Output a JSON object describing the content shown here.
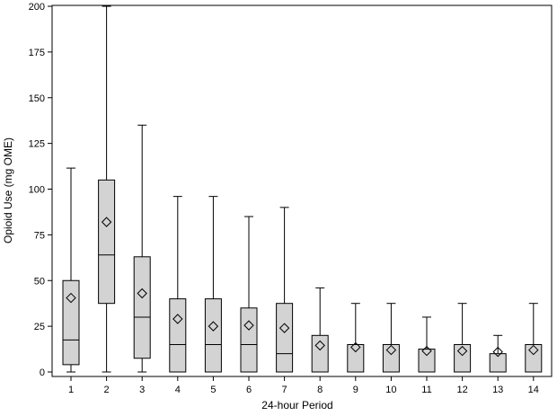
{
  "chart_data": {
    "type": "box",
    "title": "",
    "xlabel": "24-hour Period",
    "ylabel": "Opioid Use (mg OME)",
    "ylim": [
      0,
      200
    ],
    "yticks": [
      0,
      25,
      50,
      75,
      100,
      125,
      150,
      175,
      200
    ],
    "categories": [
      "1",
      "2",
      "3",
      "4",
      "5",
      "6",
      "7",
      "8",
      "9",
      "10",
      "11",
      "12",
      "13",
      "14"
    ],
    "boxes": [
      {
        "category": "1",
        "min": 0,
        "q1": 4,
        "median": 17.5,
        "q3": 50,
        "max": 111.5,
        "mean": 40.5
      },
      {
        "category": "2",
        "min": 0,
        "q1": 37.5,
        "median": 64,
        "q3": 105,
        "max": 200,
        "mean": 82
      },
      {
        "category": "3",
        "min": 0,
        "q1": 7.5,
        "median": 30,
        "q3": 63,
        "max": 135,
        "mean": 43
      },
      {
        "category": "4",
        "min": 0,
        "q1": 0,
        "median": 15,
        "q3": 40,
        "max": 96,
        "mean": 29
      },
      {
        "category": "5",
        "min": 0,
        "q1": 0,
        "median": 15,
        "q3": 40,
        "max": 96,
        "mean": 25
      },
      {
        "category": "6",
        "min": 0,
        "q1": 0,
        "median": 15,
        "q3": 35,
        "max": 85,
        "mean": 25.5
      },
      {
        "category": "7",
        "min": 0,
        "q1": 0,
        "median": 10,
        "q3": 37.5,
        "max": 90,
        "mean": 24
      },
      {
        "category": "8",
        "min": 0,
        "q1": 0,
        "median": 0,
        "q3": 20,
        "max": 46,
        "mean": 14.5
      },
      {
        "category": "9",
        "min": 0,
        "q1": 0,
        "median": 0,
        "q3": 15,
        "max": 37.5,
        "mean": 13.5
      },
      {
        "category": "10",
        "min": 0,
        "q1": 0,
        "median": 0,
        "q3": 15,
        "max": 37.5,
        "mean": 12
      },
      {
        "category": "11",
        "min": 0,
        "q1": 0,
        "median": 0,
        "q3": 12.5,
        "max": 30,
        "mean": 11.5
      },
      {
        "category": "12",
        "min": 0,
        "q1": 0,
        "median": 0,
        "q3": 15,
        "max": 37.5,
        "mean": 11.5
      },
      {
        "category": "13",
        "min": 0,
        "q1": 0,
        "median": 0,
        "q3": 10,
        "max": 20,
        "mean": 11
      },
      {
        "category": "14",
        "min": 0,
        "q1": 0,
        "median": 0,
        "q3": 15,
        "max": 37.5,
        "mean": 12
      }
    ],
    "box_fill": "#d3d3d3",
    "line_color": "#000000",
    "mean_marker": "diamond",
    "grid": false
  }
}
